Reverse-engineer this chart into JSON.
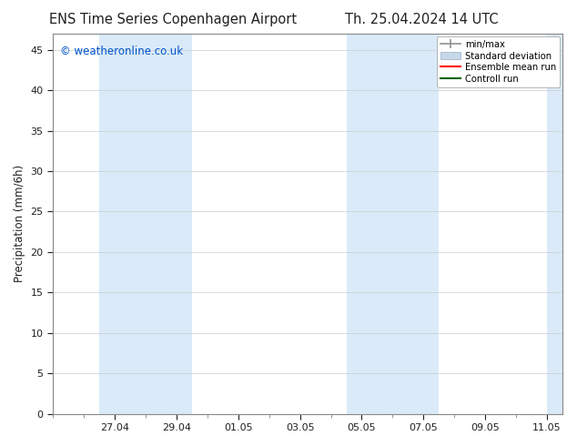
{
  "title_left": "ENS Time Series Copenhagen Airport",
  "title_right": "Th. 25.04.2024 14 UTC",
  "ylabel": "Precipitation (mm/6h)",
  "watermark": "© weatheronline.co.uk",
  "ylim": [
    0,
    47
  ],
  "yticks": [
    0,
    5,
    10,
    15,
    20,
    25,
    30,
    35,
    40,
    45
  ],
  "xlim": [
    25.0,
    41.5
  ],
  "xtick_labels": [
    "27.04",
    "29.04",
    "01.05",
    "03.05",
    "05.05",
    "07.05",
    "09.05",
    "11.05"
  ],
  "xtick_positions": [
    27,
    29,
    31,
    33,
    35,
    37,
    39,
    41
  ],
  "shaded_bands": [
    {
      "x_start": 26.5,
      "x_end": 28.0,
      "color": "#daeaf8"
    },
    {
      "x_start": 28.0,
      "x_end": 29.5,
      "color": "#daeaf8"
    },
    {
      "x_start": 34.5,
      "x_end": 36.0,
      "color": "#daeaf8"
    },
    {
      "x_start": 36.0,
      "x_end": 37.5,
      "color": "#daeaf8"
    },
    {
      "x_start": 41.0,
      "x_end": 41.5,
      "color": "#daeaf8"
    }
  ],
  "legend_items": [
    {
      "label": "min/max",
      "color": "#909090",
      "type": "minmax"
    },
    {
      "label": "Standard deviation",
      "color": "#c8d8ea",
      "type": "stddev"
    },
    {
      "label": "Ensemble mean run",
      "color": "red",
      "type": "line"
    },
    {
      "label": "Controll run",
      "color": "green",
      "type": "line"
    }
  ],
  "bg_color": "#ffffff",
  "plot_bg_color": "#ffffff",
  "font_color": "#202020",
  "title_fontsize": 10.5,
  "label_fontsize": 8.5,
  "tick_fontsize": 8,
  "watermark_color": "#0055cc",
  "border_color": "#888888",
  "grid_color": "#cccccc"
}
